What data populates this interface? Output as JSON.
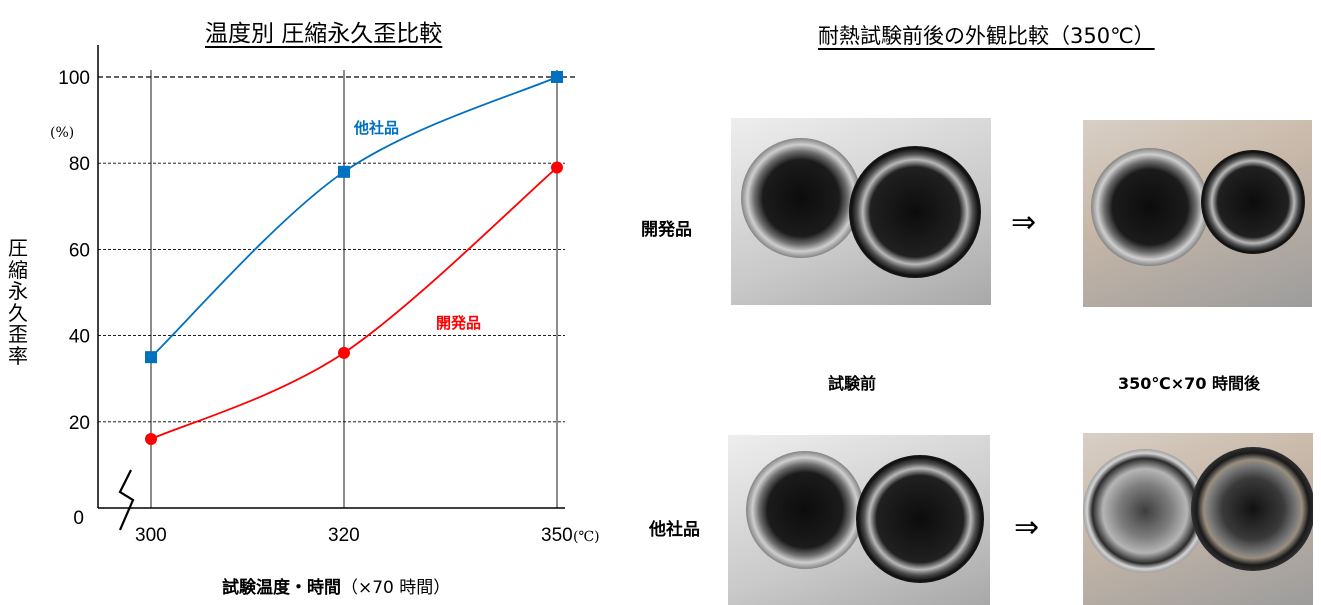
{
  "chart_data": {
    "type": "line",
    "title": "温度別 圧縮永久歪比較",
    "ylabel": [
      "圧",
      "縮",
      "永",
      "久",
      "歪",
      "率"
    ],
    "yunit": "(%)",
    "xlabel": "試験温度・時間",
    "xlabel_paren": "（×70 時間）",
    "xunit": "(℃)",
    "categories": [
      "300",
      "320",
      "350"
    ],
    "yticks": [
      "0",
      "20",
      "40",
      "60",
      "80",
      "100"
    ],
    "ylim": [
      0,
      100
    ],
    "grid": true,
    "series": [
      {
        "name": "他社品",
        "values": [
          35,
          78,
          100
        ],
        "color": "#0070c0",
        "marker": "square"
      },
      {
        "name": "開発品",
        "values": [
          16,
          36,
          79
        ],
        "color": "#ff0000",
        "marker": "circle"
      }
    ]
  },
  "photos": {
    "title": "耐熱試験前後の外観比較（350℃）",
    "rows": [
      {
        "label": "開発品",
        "color": "#ff0000",
        "arrow": "⇒"
      },
      {
        "label": "他社品",
        "color": "#0070c0",
        "arrow": "⇒"
      }
    ],
    "captions": {
      "before": "試験前",
      "after": "350℃×70 時間後"
    }
  }
}
